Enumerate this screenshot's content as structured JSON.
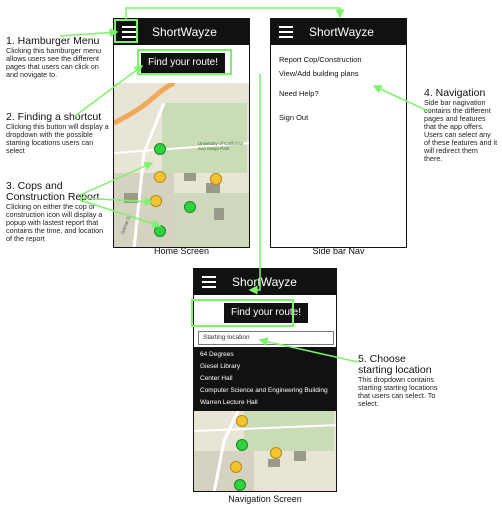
{
  "annotations": {
    "hamburger": {
      "title": "1. Hamburger Menu",
      "body": "Clicking this hamburger menu allows users see the different pages that users can click on and novigate to."
    },
    "shortcut": {
      "title": "2. Finding a shortcut",
      "body": "Clicking this button will display a dropdown with the possible starting locations users can select"
    },
    "cops": {
      "title": "3. Cops and Construction Report",
      "body": "Clicking on either the cop or construction icon will display a popup with lastest report that contains the time, and location of the report"
    },
    "navigation": {
      "title": "4. Navigation",
      "body": "Side bar nagivation contains the different pages and features that the app offers. Users can select any of these features and it will redirect them there."
    },
    "choose": {
      "title": "5. Choose starting location",
      "body": "This dropdown contains starting starting locations that users can select. To select."
    }
  },
  "app_title": "ShortWayze",
  "find_route_label": "Find your route!",
  "map_labels": {
    "campus": "University of California San Diego Park",
    "road1": "Gilman Dr"
  },
  "captions": {
    "home": "Home Screen",
    "sidebar": "Side bar Nav",
    "navigation": "Navigation Screen"
  },
  "sidebar_nav": [
    "Report Cop/Construction",
    "View/Add building plans",
    "Need Help?",
    "Sign Out"
  ],
  "starting_location_placeholder": "Starting location",
  "dropdown_options": [
    "64 Degrees",
    "Giesel Library",
    "Center Hall",
    "Computer Science and Engineering Building",
    "Warren Lecture Hall"
  ],
  "colors": {
    "highlight": "#7cf36a",
    "appbar": "#111111",
    "cop_pin": "#f4c430",
    "construction_pin": "#30d040"
  }
}
